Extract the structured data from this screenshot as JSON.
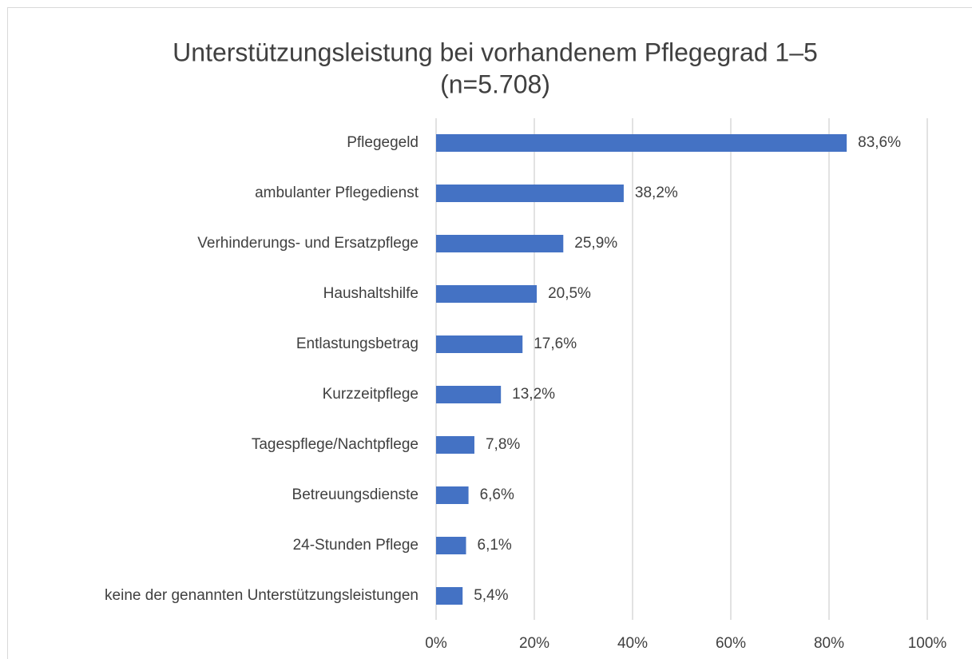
{
  "chart_data": {
    "type": "barh",
    "title": "Unterstützungsleistung bei vorhandenem Pflegegrad 1–5",
    "subtitle": "(n=5.708)",
    "categories": [
      "Pflegegeld",
      "ambulanter Pflegedienst",
      "Verhinderungs- und Ersatzpflege",
      "Haushaltshilfe",
      "Entlastungsbetrag",
      "Kurzzeitpflege",
      "Tagespflege/Nachtpflege",
      "Betreuungsdienste",
      "24-Stunden Pflege",
      "keine der genannten Unterstützungsleistungen"
    ],
    "values": [
      83.6,
      38.2,
      25.9,
      20.5,
      17.6,
      13.2,
      7.8,
      6.6,
      6.1,
      5.4
    ],
    "value_labels": [
      "83,6%",
      "38,2%",
      "25,9%",
      "20,5%",
      "17,6%",
      "13,2%",
      "7,8%",
      "6,6%",
      "6,1%",
      "5,4%"
    ],
    "color": "#4472c4",
    "xlim": [
      0,
      100
    ],
    "xticks": [
      {
        "value": 0,
        "label": "0%"
      },
      {
        "value": 20,
        "label": "20%"
      },
      {
        "value": 40,
        "label": "40%"
      },
      {
        "value": 60,
        "label": "60%"
      },
      {
        "value": 80,
        "label": "80%"
      },
      {
        "value": 100,
        "label": "100%"
      }
    ],
    "grid": true
  }
}
